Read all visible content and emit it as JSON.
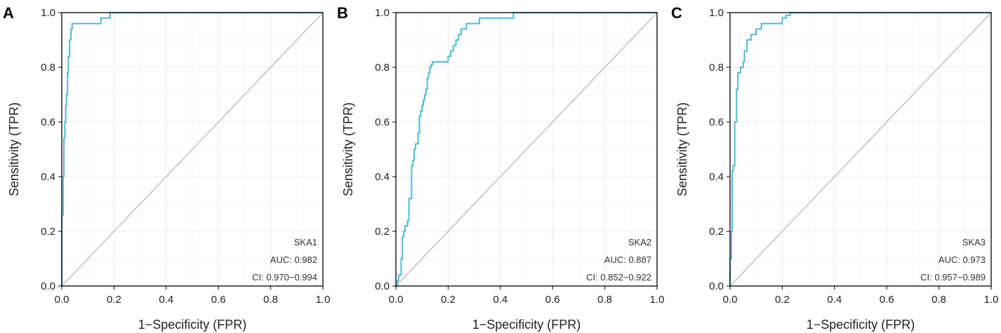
{
  "colors": {
    "roc": "#4dbbd5",
    "diagonal": "#bdbdbd"
  },
  "chart_data": [
    {
      "type": "line",
      "panel_label": "A",
      "xlabel": "1−Specificity (FPR)",
      "ylabel": "Sensitivity (TPR)",
      "xlim": [
        0,
        1
      ],
      "ylim": [
        0,
        1
      ],
      "xticks": [
        "0.0",
        "0.2",
        "0.4",
        "0.6",
        "0.8",
        "1.0"
      ],
      "yticks": [
        "0.0",
        "0.2",
        "0.4",
        "0.6",
        "0.8",
        "1.0"
      ],
      "grid": true,
      "legend": "bottom-right",
      "annotation": {
        "gene": "SKA1",
        "auc": "AUC: 0.982",
        "ci": "CI: 0.970−0.994"
      },
      "series": [
        {
          "name": "SKA1",
          "x": [
            0,
            0,
            0.005,
            0.005,
            0.008,
            0.008,
            0.012,
            0.012,
            0.015,
            0.015,
            0.018,
            0.018,
            0.022,
            0.022,
            0.025,
            0.025,
            0.03,
            0.03,
            0.035,
            0.035,
            0.04,
            0.04,
            0.045,
            0.045,
            0.15,
            0.15,
            0.185,
            0.185,
            1.0
          ],
          "y": [
            0,
            0.26,
            0.26,
            0.4,
            0.4,
            0.54,
            0.54,
            0.6,
            0.6,
            0.66,
            0.66,
            0.7,
            0.7,
            0.78,
            0.78,
            0.84,
            0.84,
            0.9,
            0.9,
            0.94,
            0.94,
            0.96,
            0.96,
            0.96,
            0.96,
            0.98,
            0.98,
            1.0,
            1.0
          ]
        },
        {
          "name": "reference",
          "x": [
            0,
            1
          ],
          "y": [
            0,
            1
          ]
        }
      ]
    },
    {
      "type": "line",
      "panel_label": "B",
      "xlabel": "1−Specificity (FPR)",
      "ylabel": "Sensitivity (TPR)",
      "xlim": [
        0,
        1
      ],
      "ylim": [
        0,
        1
      ],
      "xticks": [
        "0.0",
        "0.2",
        "0.4",
        "0.6",
        "0.8",
        "1.0"
      ],
      "yticks": [
        "0.0",
        "0.2",
        "0.4",
        "0.6",
        "0.8",
        "1.0"
      ],
      "grid": true,
      "legend": "bottom-right",
      "annotation": {
        "gene": "SKA2",
        "auc": "AUC: 0.887",
        "ci": "CI: 0.852−0.922"
      },
      "series": [
        {
          "name": "SKA2",
          "x": [
            0,
            0.005,
            0.005,
            0.01,
            0.01,
            0.02,
            0.02,
            0.025,
            0.025,
            0.03,
            0.03,
            0.035,
            0.035,
            0.045,
            0.045,
            0.05,
            0.05,
            0.06,
            0.06,
            0.065,
            0.065,
            0.07,
            0.07,
            0.075,
            0.075,
            0.085,
            0.085,
            0.09,
            0.09,
            0.095,
            0.095,
            0.1,
            0.1,
            0.105,
            0.105,
            0.11,
            0.11,
            0.115,
            0.115,
            0.12,
            0.12,
            0.125,
            0.125,
            0.13,
            0.13,
            0.135,
            0.135,
            0.14,
            0.14,
            0.15,
            0.15,
            0.2,
            0.2,
            0.21,
            0.21,
            0.22,
            0.22,
            0.23,
            0.23,
            0.24,
            0.24,
            0.25,
            0.25,
            0.26,
            0.26,
            0.27,
            0.27,
            0.32,
            0.32,
            0.36,
            0.36,
            0.45,
            0.45,
            1.0
          ],
          "y": [
            0,
            0,
            0.02,
            0.02,
            0.04,
            0.04,
            0.1,
            0.1,
            0.18,
            0.18,
            0.2,
            0.2,
            0.22,
            0.22,
            0.24,
            0.24,
            0.32,
            0.32,
            0.44,
            0.44,
            0.46,
            0.46,
            0.5,
            0.5,
            0.52,
            0.52,
            0.56,
            0.56,
            0.62,
            0.62,
            0.64,
            0.64,
            0.66,
            0.66,
            0.68,
            0.68,
            0.7,
            0.7,
            0.72,
            0.72,
            0.76,
            0.76,
            0.78,
            0.78,
            0.8,
            0.8,
            0.81,
            0.81,
            0.82,
            0.82,
            0.82,
            0.82,
            0.84,
            0.84,
            0.86,
            0.86,
            0.88,
            0.88,
            0.9,
            0.9,
            0.92,
            0.92,
            0.94,
            0.94,
            0.94,
            0.94,
            0.96,
            0.96,
            0.98,
            0.98,
            0.98,
            0.98,
            1.0,
            1.0
          ]
        },
        {
          "name": "reference",
          "x": [
            0,
            1
          ],
          "y": [
            0,
            1
          ]
        }
      ]
    },
    {
      "type": "line",
      "panel_label": "C",
      "xlabel": "1−Specificity (FPR)",
      "ylabel": "Sensitivity (TPR)",
      "xlim": [
        0,
        1
      ],
      "ylim": [
        0,
        1
      ],
      "xticks": [
        "0.0",
        "0.2",
        "0.4",
        "0.6",
        "0.8",
        "1.0"
      ],
      "yticks": [
        "0.0",
        "0.2",
        "0.4",
        "0.6",
        "0.8",
        "1.0"
      ],
      "grid": true,
      "legend": "bottom-right",
      "annotation": {
        "gene": "SKA3",
        "auc": "AUC: 0.973",
        "ci": "CI: 0.957−0.989"
      },
      "series": [
        {
          "name": "SKA3",
          "x": [
            0,
            0,
            0.005,
            0.005,
            0.008,
            0.008,
            0.012,
            0.012,
            0.018,
            0.018,
            0.025,
            0.025,
            0.03,
            0.03,
            0.04,
            0.04,
            0.05,
            0.05,
            0.055,
            0.055,
            0.065,
            0.065,
            0.08,
            0.08,
            0.1,
            0.1,
            0.12,
            0.12,
            0.2,
            0.2,
            0.215,
            0.215,
            0.23,
            0.23,
            1.0
          ],
          "y": [
            0,
            0.1,
            0.1,
            0.2,
            0.2,
            0.42,
            0.42,
            0.44,
            0.44,
            0.6,
            0.6,
            0.72,
            0.72,
            0.78,
            0.78,
            0.8,
            0.8,
            0.82,
            0.82,
            0.86,
            0.86,
            0.9,
            0.9,
            0.92,
            0.92,
            0.94,
            0.94,
            0.96,
            0.96,
            0.98,
            0.98,
            0.99,
            0.99,
            1.0,
            1.0
          ]
        },
        {
          "name": "reference",
          "x": [
            0,
            1
          ],
          "y": [
            0,
            1
          ]
        }
      ]
    }
  ]
}
